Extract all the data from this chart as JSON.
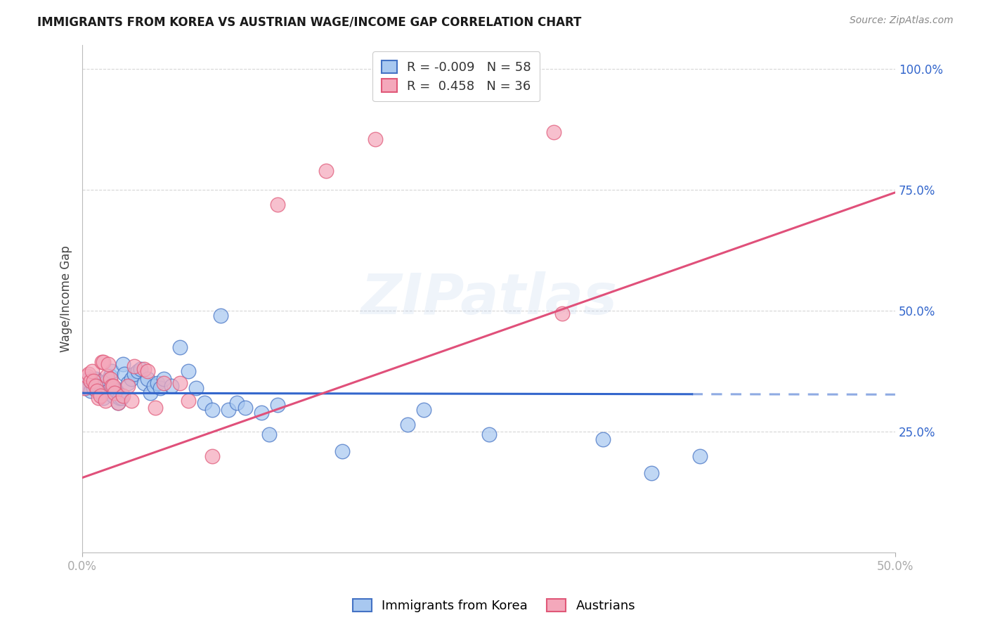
{
  "title": "IMMIGRANTS FROM KOREA VS AUSTRIAN WAGE/INCOME GAP CORRELATION CHART",
  "source": "Source: ZipAtlas.com",
  "ylabel": "Wage/Income Gap",
  "legend_blue_R": "-0.009",
  "legend_blue_N": "58",
  "legend_pink_R": "0.458",
  "legend_pink_N": "36",
  "legend_label_blue": "Immigrants from Korea",
  "legend_label_pink": "Austrians",
  "blue_fill": "#A8C8F0",
  "pink_fill": "#F4A8BB",
  "blue_edge": "#4472C4",
  "pink_edge": "#E05878",
  "trendline_blue": "#3366CC",
  "trendline_pink": "#E0507A",
  "xlim": [
    0.0,
    0.5
  ],
  "ylim": [
    0.0,
    1.05
  ],
  "ytick_positions": [
    0.25,
    0.5,
    0.75,
    1.0
  ],
  "ytick_labels": [
    "25.0%",
    "50.0%",
    "75.0%",
    "100.0%"
  ],
  "xtick_positions": [
    0.0,
    0.5
  ],
  "xtick_labels": [
    "0.0%",
    "50.0%"
  ],
  "background_color": "#ffffff",
  "grid_color": "#cccccc",
  "blue_trendline_end_solid": 0.375,
  "blue_trendline_y_intercept": 0.33,
  "blue_trendline_slope": -0.006,
  "pink_trendline_y_intercept": 0.155,
  "pink_trendline_slope": 1.18,
  "blue_dots": [
    [
      0.001,
      0.355
    ],
    [
      0.002,
      0.34
    ],
    [
      0.003,
      0.345
    ],
    [
      0.004,
      0.36
    ],
    [
      0.005,
      0.335
    ],
    [
      0.006,
      0.35
    ],
    [
      0.007,
      0.34
    ],
    [
      0.008,
      0.36
    ],
    [
      0.009,
      0.355
    ],
    [
      0.01,
      0.345
    ],
    [
      0.011,
      0.33
    ],
    [
      0.012,
      0.34
    ],
    [
      0.013,
      0.32
    ],
    [
      0.014,
      0.35
    ],
    [
      0.015,
      0.355
    ],
    [
      0.016,
      0.335
    ],
    [
      0.017,
      0.365
    ],
    [
      0.018,
      0.375
    ],
    [
      0.019,
      0.325
    ],
    [
      0.02,
      0.34
    ],
    [
      0.021,
      0.335
    ],
    [
      0.022,
      0.31
    ],
    [
      0.023,
      0.32
    ],
    [
      0.024,
      0.32
    ],
    [
      0.025,
      0.39
    ],
    [
      0.026,
      0.37
    ],
    [
      0.028,
      0.35
    ],
    [
      0.03,
      0.36
    ],
    [
      0.032,
      0.37
    ],
    [
      0.034,
      0.375
    ],
    [
      0.036,
      0.38
    ],
    [
      0.038,
      0.35
    ],
    [
      0.04,
      0.36
    ],
    [
      0.042,
      0.33
    ],
    [
      0.044,
      0.345
    ],
    [
      0.046,
      0.35
    ],
    [
      0.048,
      0.34
    ],
    [
      0.05,
      0.36
    ],
    [
      0.055,
      0.345
    ],
    [
      0.06,
      0.425
    ],
    [
      0.065,
      0.375
    ],
    [
      0.07,
      0.34
    ],
    [
      0.075,
      0.31
    ],
    [
      0.08,
      0.295
    ],
    [
      0.085,
      0.49
    ],
    [
      0.09,
      0.295
    ],
    [
      0.095,
      0.31
    ],
    [
      0.1,
      0.3
    ],
    [
      0.11,
      0.29
    ],
    [
      0.115,
      0.245
    ],
    [
      0.12,
      0.305
    ],
    [
      0.16,
      0.21
    ],
    [
      0.2,
      0.265
    ],
    [
      0.21,
      0.295
    ],
    [
      0.25,
      0.245
    ],
    [
      0.32,
      0.235
    ],
    [
      0.35,
      0.165
    ],
    [
      0.38,
      0.2
    ]
  ],
  "pink_dots": [
    [
      0.001,
      0.34
    ],
    [
      0.003,
      0.365
    ],
    [
      0.004,
      0.37
    ],
    [
      0.005,
      0.355
    ],
    [
      0.006,
      0.375
    ],
    [
      0.007,
      0.355
    ],
    [
      0.008,
      0.345
    ],
    [
      0.009,
      0.335
    ],
    [
      0.01,
      0.32
    ],
    [
      0.011,
      0.325
    ],
    [
      0.012,
      0.395
    ],
    [
      0.013,
      0.395
    ],
    [
      0.014,
      0.315
    ],
    [
      0.015,
      0.365
    ],
    [
      0.016,
      0.39
    ],
    [
      0.017,
      0.36
    ],
    [
      0.018,
      0.345
    ],
    [
      0.019,
      0.345
    ],
    [
      0.02,
      0.33
    ],
    [
      0.022,
      0.31
    ],
    [
      0.025,
      0.325
    ],
    [
      0.028,
      0.345
    ],
    [
      0.03,
      0.315
    ],
    [
      0.032,
      0.385
    ],
    [
      0.038,
      0.38
    ],
    [
      0.04,
      0.375
    ],
    [
      0.045,
      0.3
    ],
    [
      0.05,
      0.35
    ],
    [
      0.06,
      0.35
    ],
    [
      0.065,
      0.315
    ],
    [
      0.08,
      0.2
    ],
    [
      0.12,
      0.72
    ],
    [
      0.15,
      0.79
    ],
    [
      0.18,
      0.855
    ],
    [
      0.29,
      0.87
    ],
    [
      0.295,
      0.495
    ]
  ]
}
